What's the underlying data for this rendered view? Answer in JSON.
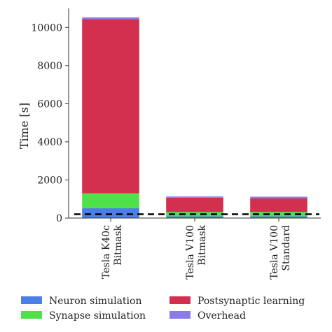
{
  "chart_data": {
    "type": "bar",
    "stacked": true,
    "ylabel": "Time [s]",
    "ylim": [
      0,
      11000
    ],
    "yticks": [
      0,
      2000,
      4000,
      6000,
      8000,
      10000
    ],
    "categories": [
      [
        "Tesla K40c",
        "Bitmask"
      ],
      [
        "Tesla V100",
        "Bitmask"
      ],
      [
        "Tesla V100",
        "Standard"
      ]
    ],
    "series": [
      {
        "name": "Neuron simulation",
        "color": "#4c7ee8",
        "values": [
          520,
          90,
          90
        ]
      },
      {
        "name": "Synapse simulation",
        "color": "#4fe14a",
        "values": [
          780,
          230,
          230
        ]
      },
      {
        "name": "Postsynaptic learning",
        "color": "#d3304d",
        "values": [
          9130,
          750,
          720
        ]
      },
      {
        "name": "Overhead",
        "color": "#8b7be7",
        "values": [
          100,
          65,
          80
        ]
      }
    ],
    "reference_line": {
      "value": 200,
      "style": "dashed",
      "color": "#000000"
    },
    "grid": false,
    "legend": {
      "placement": "bottom",
      "columns": 2
    }
  }
}
